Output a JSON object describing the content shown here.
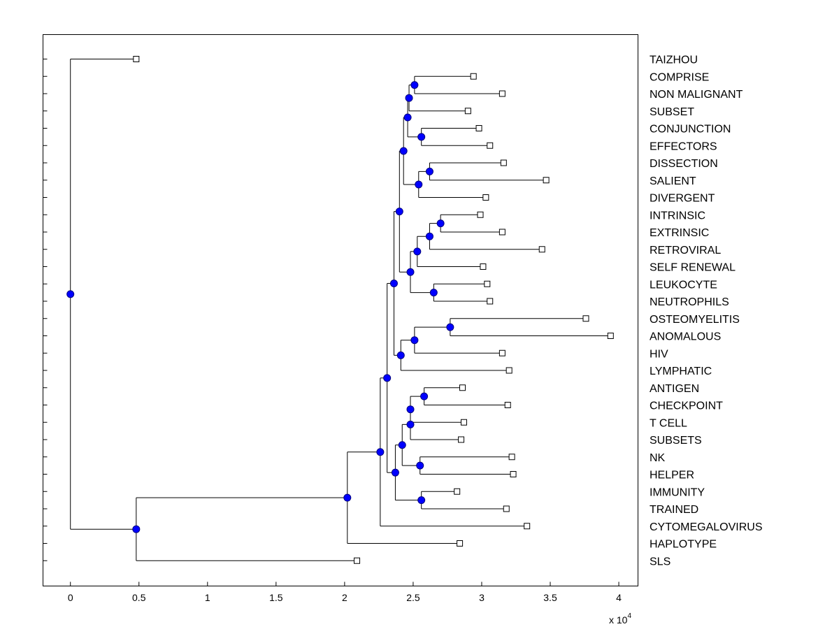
{
  "chart_data": {
    "type": "dendrogram",
    "orientation": "horizontal",
    "x_ticks": [
      0,
      0.5,
      1,
      1.5,
      2,
      2.5,
      3,
      3.5,
      4
    ],
    "x_tick_labels": [
      "0",
      "0.5",
      "1",
      "1.5",
      "2",
      "2.5",
      "3",
      "3.5",
      "4"
    ],
    "xlim": [
      -0.2,
      4.14
    ],
    "x_multiplier_label": "x 10",
    "x_multiplier_exponent": "4",
    "leaves": [
      {
        "name": "TAIZHOU",
        "x": 0.48
      },
      {
        "name": "COMPRISE",
        "x": 2.94
      },
      {
        "name": "NON MALIGNANT",
        "x": 3.15
      },
      {
        "name": "SUBSET",
        "x": 2.9
      },
      {
        "name": "CONJUNCTION",
        "x": 2.98
      },
      {
        "name": "EFFECTORS",
        "x": 3.06
      },
      {
        "name": "DISSECTION",
        "x": 3.16
      },
      {
        "name": "SALIENT",
        "x": 3.47
      },
      {
        "name": "DIVERGENT",
        "x": 3.03
      },
      {
        "name": "INTRINSIC",
        "x": 2.99
      },
      {
        "name": "EXTRINSIC",
        "x": 3.15
      },
      {
        "name": "RETROVIRAL",
        "x": 3.44
      },
      {
        "name": "SELF RENEWAL",
        "x": 3.01
      },
      {
        "name": "LEUKOCYTE",
        "x": 3.04
      },
      {
        "name": "NEUTROPHILS",
        "x": 3.06
      },
      {
        "name": "OSTEOMYELITIS",
        "x": 3.76
      },
      {
        "name": "ANOMALOUS",
        "x": 3.94
      },
      {
        "name": "HIV",
        "x": 3.15
      },
      {
        "name": "LYMPHATIC",
        "x": 3.2
      },
      {
        "name": "ANTIGEN",
        "x": 2.86
      },
      {
        "name": "CHECKPOINT",
        "x": 3.19
      },
      {
        "name": "T CELL",
        "x": 2.87
      },
      {
        "name": "SUBSETS",
        "x": 2.85
      },
      {
        "name": "NK",
        "x": 3.22
      },
      {
        "name": "HELPER",
        "x": 3.23
      },
      {
        "name": "IMMUNITY",
        "x": 2.82
      },
      {
        "name": "TRAINED",
        "x": 3.18
      },
      {
        "name": "CYTOMEGALOVIRUS",
        "x": 3.33
      },
      {
        "name": "HAPLOTYPE",
        "x": 2.84
      },
      {
        "name": "SLS",
        "x": 2.09
      }
    ],
    "merges": [
      {
        "id": "m1",
        "height": 2.51,
        "children": [
          "COMPRISE",
          "NON MALIGNANT"
        ]
      },
      {
        "id": "m2",
        "height": 2.47,
        "children": [
          "m1",
          "SUBSET"
        ]
      },
      {
        "id": "m3",
        "height": 2.56,
        "children": [
          "CONJUNCTION",
          "EFFECTORS"
        ]
      },
      {
        "id": "m4",
        "height": 2.46,
        "children": [
          "m2",
          "m3"
        ]
      },
      {
        "id": "m5",
        "height": 2.62,
        "children": [
          "DISSECTION",
          "SALIENT"
        ]
      },
      {
        "id": "m6",
        "height": 2.54,
        "children": [
          "m5",
          "DIVERGENT"
        ]
      },
      {
        "id": "m7",
        "height": 2.43,
        "children": [
          "m4",
          "m6"
        ]
      },
      {
        "id": "m8",
        "height": 2.7,
        "children": [
          "INTRINSIC",
          "EXTRINSIC"
        ]
      },
      {
        "id": "m9",
        "height": 2.62,
        "children": [
          "m8",
          "RETROVIRAL"
        ]
      },
      {
        "id": "m10",
        "height": 2.53,
        "children": [
          "m9",
          "SELF RENEWAL"
        ]
      },
      {
        "id": "m11",
        "height": 2.65,
        "children": [
          "LEUKOCYTE",
          "NEUTROPHILS"
        ]
      },
      {
        "id": "m12",
        "height": 2.48,
        "children": [
          "m10",
          "m11"
        ]
      },
      {
        "id": "m13",
        "height": 2.4,
        "children": [
          "m7",
          "m12"
        ]
      },
      {
        "id": "m14",
        "height": 2.77,
        "children": [
          "OSTEOMYELITIS",
          "ANOMALOUS"
        ]
      },
      {
        "id": "m15",
        "height": 2.51,
        "children": [
          "m14",
          "HIV"
        ]
      },
      {
        "id": "m16",
        "height": 2.41,
        "children": [
          "m15",
          "LYMPHATIC"
        ]
      },
      {
        "id": "m17",
        "height": 2.36,
        "children": [
          "m13",
          "m16"
        ]
      },
      {
        "id": "m18",
        "height": 2.58,
        "children": [
          "ANTIGEN",
          "CHECKPOINT"
        ]
      },
      {
        "id": "m19",
        "height": 2.48,
        "children": [
          "m18",
          "T CELL"
        ]
      },
      {
        "id": "m20",
        "height": 2.48,
        "children": [
          "m19",
          "SUBSETS"
        ]
      },
      {
        "id": "m21",
        "height": 2.55,
        "children": [
          "NK",
          "HELPER"
        ]
      },
      {
        "id": "m22",
        "height": 2.42,
        "children": [
          "m20",
          "m21"
        ]
      },
      {
        "id": "m23",
        "height": 2.56,
        "children": [
          "IMMUNITY",
          "TRAINED"
        ]
      },
      {
        "id": "m24",
        "height": 2.37,
        "children": [
          "m22",
          "m23"
        ]
      },
      {
        "id": "m25",
        "height": 2.31,
        "children": [
          "m17",
          "m24"
        ]
      },
      {
        "id": "m26",
        "height": 2.26,
        "children": [
          "m25",
          "CYTOMEGALOVIRUS"
        ]
      },
      {
        "id": "m27",
        "height": 2.02,
        "children": [
          "m26",
          "HAPLOTYPE"
        ]
      },
      {
        "id": "m28",
        "height": 0.48,
        "children": [
          "m27",
          "SLS"
        ]
      },
      {
        "id": "m29",
        "height": 0.0,
        "children": [
          "TAIZHOU",
          "m28"
        ]
      }
    ],
    "colors": {
      "node_fill": "#0000ff",
      "node_stroke": "#000080",
      "line": "#000000",
      "leaf_marker_fill": "#ffffff"
    }
  }
}
